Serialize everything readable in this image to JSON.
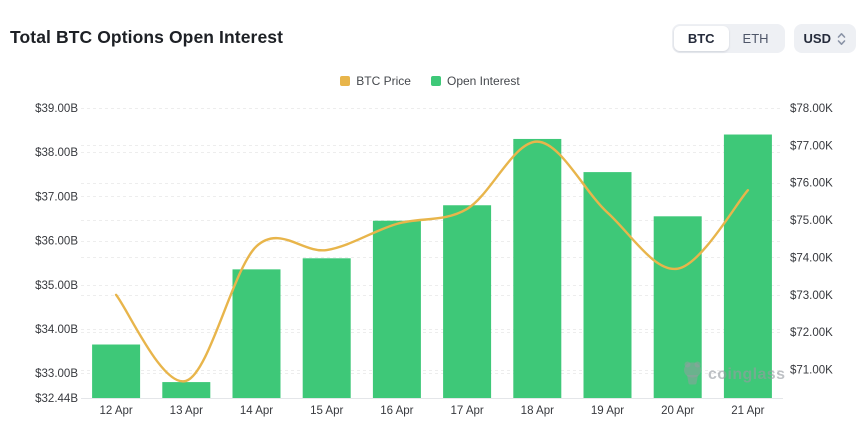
{
  "header": {
    "title": "Total BTC Options Open Interest",
    "asset_toggle": {
      "options": [
        "BTC",
        "ETH"
      ],
      "selected": "BTC"
    },
    "currency_select": {
      "value": "USD",
      "icon": "chevron-up-down-icon"
    }
  },
  "legend": [
    {
      "label": "BTC Price",
      "color": "#e8b54b"
    },
    {
      "label": "Open Interest",
      "color": "#3ec878"
    }
  ],
  "watermark": {
    "text": "coinglass",
    "icon": "coinglass-bear-icon"
  },
  "chart_data": {
    "type": "bar",
    "subtype": "bar+line combo, dual y-axis",
    "title": "Total BTC Options Open Interest",
    "categories": [
      "12 Apr",
      "13 Apr",
      "14 Apr",
      "15 Apr",
      "16 Apr",
      "17 Apr",
      "18 Apr",
      "19 Apr",
      "20 Apr",
      "21 Apr"
    ],
    "series": [
      {
        "name": "Open Interest",
        "type": "bar",
        "axis": "left",
        "unit": "$ billions",
        "color": "#3ec878",
        "values": [
          33.65,
          32.8,
          35.35,
          35.6,
          36.45,
          36.8,
          38.3,
          37.55,
          36.55,
          38.4
        ]
      },
      {
        "name": "BTC Price",
        "type": "line",
        "axis": "right",
        "unit": "$ thousands",
        "color": "#e8b54b",
        "smooth": true,
        "values": [
          73.0,
          70.7,
          74.3,
          74.2,
          74.9,
          75.3,
          77.1,
          75.2,
          73.7,
          75.8
        ]
      }
    ],
    "left_axis": {
      "min": 32.44,
      "max": 39,
      "tick_values": [
        39,
        38,
        37,
        36,
        35,
        34,
        33,
        32.44
      ],
      "tick_labels": [
        "$39.00B",
        "$38.00B",
        "$37.00B",
        "$36.00B",
        "$35.00B",
        "$34.00B",
        "$33.00B",
        "$32.44B"
      ]
    },
    "right_axis": {
      "min": 70.24,
      "max": 78,
      "tick_values": [
        78,
        77,
        76,
        75,
        74,
        73,
        72,
        71
      ],
      "tick_labels": [
        "$78.00K",
        "$77.00K",
        "$76.00K",
        "$75.00K",
        "$74.00K",
        "$73.00K",
        "$72.00K",
        "$71.00K"
      ]
    },
    "grid": {
      "horizontal_dashed": true,
      "color": "#ededed"
    },
    "legend_position": "top-center"
  }
}
